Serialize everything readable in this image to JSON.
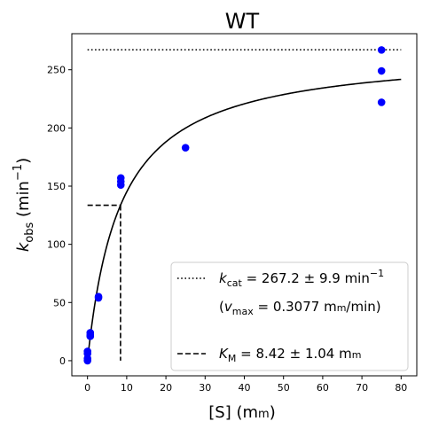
{
  "chart_data": {
    "type": "scatter",
    "title": "WT",
    "xlabel": {
      "base": "[S] (m",
      "small": "m",
      "suffix": ")"
    },
    "ylabel": {
      "k": "k",
      "sub": "obs",
      "rest": " (min",
      "sup": "−1",
      "close": ")"
    },
    "xlim": [
      -4,
      84
    ],
    "ylim": [
      -13,
      281
    ],
    "xticks": [
      0,
      10,
      20,
      30,
      40,
      50,
      60,
      70,
      80
    ],
    "yticks": [
      0,
      50,
      100,
      150,
      200,
      250
    ],
    "grid": false,
    "legend_position": "lower-right",
    "point_color": "#0000ff",
    "points": [
      {
        "x": 0,
        "y": 0
      },
      {
        "x": 0,
        "y": 2
      },
      {
        "x": 0,
        "y": 6
      },
      {
        "x": 0,
        "y": 8
      },
      {
        "x": 0.7,
        "y": 21
      },
      {
        "x": 0.7,
        "y": 22
      },
      {
        "x": 0.7,
        "y": 24
      },
      {
        "x": 2.8,
        "y": 54
      },
      {
        "x": 2.8,
        "y": 55
      },
      {
        "x": 8.5,
        "y": 151
      },
      {
        "x": 8.5,
        "y": 154
      },
      {
        "x": 8.5,
        "y": 157
      },
      {
        "x": 25,
        "y": 183
      },
      {
        "x": 75,
        "y": 222
      },
      {
        "x": 75,
        "y": 249
      },
      {
        "x": 75,
        "y": 267
      }
    ],
    "fit": {
      "type": "michaelis-menten",
      "kcat": 267.2,
      "km": 8.42,
      "x_range": [
        0,
        80
      ],
      "color": "#000000"
    },
    "kcat_line": {
      "y": 267.2,
      "x_range": [
        0,
        80
      ],
      "style": "dotted"
    },
    "km_line": {
      "x": 8.42,
      "y": 133.6,
      "style": "dashed"
    },
    "legend": [
      {
        "symbol": "dotted",
        "k": "k",
        "sub": "cat",
        "text": " = 267.2 ± 9.9 min",
        "sup": "−1"
      },
      {
        "symbol": "none",
        "open": "(",
        "v": "v",
        "sub": "max",
        "text": " = 0.3077 m",
        "small": "m",
        "tail": "/min)"
      },
      {
        "symbol": "dashed",
        "k": "K",
        "sub": "M",
        "text": " = 8.42 ± 1.04 m",
        "small": "m",
        "tail": ""
      }
    ]
  }
}
